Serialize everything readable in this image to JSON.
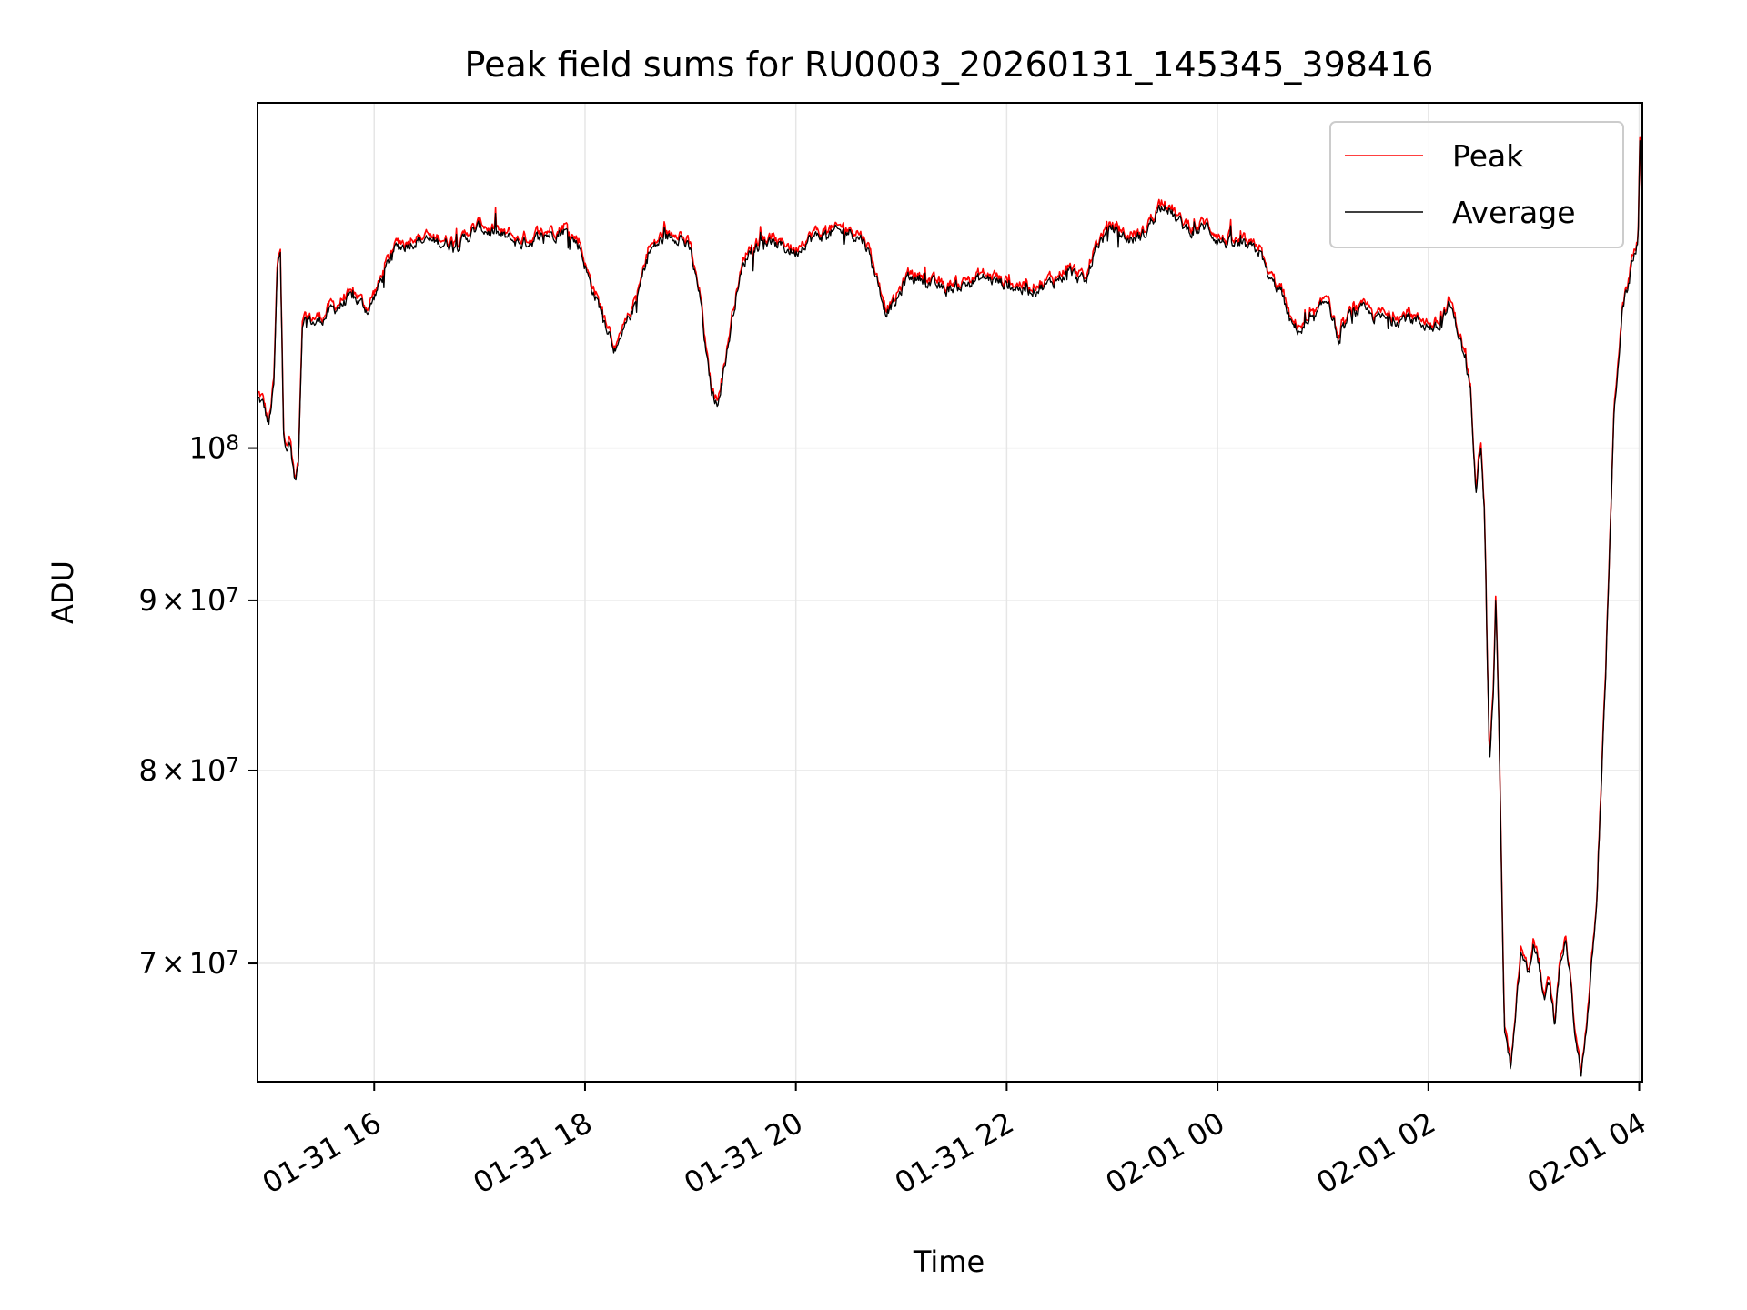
{
  "chart_data": {
    "type": "line",
    "title": "Peak field sums for RU0003_20260131_145345_398416",
    "xlabel": "Time",
    "ylabel": "ADU",
    "yscale": "log",
    "ylim": [
      64500000,
      127000000
    ],
    "xlim_hours": [
      14.893,
      28.03
    ],
    "grid": true,
    "legend_location": "top-right",
    "x_ticks": [
      {
        "hours": 16,
        "label": "01-31 16"
      },
      {
        "hours": 18,
        "label": "01-31 18"
      },
      {
        "hours": 20,
        "label": "01-31 20"
      },
      {
        "hours": 22,
        "label": "01-31 22"
      },
      {
        "hours": 24,
        "label": "02-01 00"
      },
      {
        "hours": 26,
        "label": "02-01 02"
      },
      {
        "hours": 28,
        "label": "02-01 04"
      }
    ],
    "y_ticks": [
      {
        "value": 70000000,
        "mant": "7",
        "times": "×",
        "base": "10",
        "exp": "7"
      },
      {
        "value": 80000000,
        "mant": "8",
        "times": "×",
        "base": "10",
        "exp": "7"
      },
      {
        "value": 90000000,
        "mant": "9",
        "times": "×",
        "base": "10",
        "exp": "7"
      },
      {
        "value": 100000000,
        "mant": "",
        "times": "",
        "base": "10",
        "exp": "8"
      }
    ],
    "series": [
      {
        "name": "Peak",
        "color": "#ff0000",
        "offset_fraction": 0.003,
        "anchors": [
          [
            14.893,
            103500000
          ],
          [
            14.95,
            103000000
          ],
          [
            15.0,
            101500000
          ],
          [
            15.05,
            104500000
          ],
          [
            15.08,
            113000000
          ],
          [
            15.11,
            114500000
          ],
          [
            15.14,
            101500000
          ],
          [
            15.17,
            99500000
          ],
          [
            15.2,
            100500000
          ],
          [
            15.25,
            97500000
          ],
          [
            15.28,
            99000000
          ],
          [
            15.32,
            109500000
          ],
          [
            15.45,
            109000000
          ],
          [
            15.6,
            110000000
          ],
          [
            15.8,
            111000000
          ],
          [
            15.95,
            110000000
          ],
          [
            16.05,
            112000000
          ],
          [
            16.2,
            114800000
          ],
          [
            16.4,
            115500000
          ],
          [
            16.6,
            115300000
          ],
          [
            16.8,
            115200000
          ],
          [
            17.0,
            116500000
          ],
          [
            17.2,
            115800000
          ],
          [
            17.4,
            115200000
          ],
          [
            17.6,
            115800000
          ],
          [
            17.8,
            116300000
          ],
          [
            17.95,
            115000000
          ],
          [
            18.05,
            112000000
          ],
          [
            18.15,
            110000000
          ],
          [
            18.25,
            108000000
          ],
          [
            18.3,
            106800000
          ],
          [
            18.4,
            109000000
          ],
          [
            18.5,
            111000000
          ],
          [
            18.6,
            114500000
          ],
          [
            18.75,
            115600000
          ],
          [
            18.9,
            115900000
          ],
          [
            19.0,
            114500000
          ],
          [
            19.1,
            110500000
          ],
          [
            19.15,
            106500000
          ],
          [
            19.2,
            104000000
          ],
          [
            19.25,
            103000000
          ],
          [
            19.35,
            107000000
          ],
          [
            19.45,
            112000000
          ],
          [
            19.55,
            114500000
          ],
          [
            19.7,
            115500000
          ],
          [
            19.85,
            115000000
          ],
          [
            20.0,
            114500000
          ],
          [
            20.1,
            115500000
          ],
          [
            20.3,
            116000000
          ],
          [
            20.5,
            116200000
          ],
          [
            20.65,
            115500000
          ],
          [
            20.75,
            113000000
          ],
          [
            20.85,
            110000000
          ],
          [
            20.95,
            110500000
          ],
          [
            21.05,
            112500000
          ],
          [
            21.2,
            112500000
          ],
          [
            21.4,
            111500000
          ],
          [
            21.6,
            112000000
          ],
          [
            21.8,
            112500000
          ],
          [
            22.0,
            112000000
          ],
          [
            22.2,
            111500000
          ],
          [
            22.4,
            112000000
          ],
          [
            22.6,
            113000000
          ],
          [
            22.75,
            112000000
          ],
          [
            22.85,
            115000000
          ],
          [
            23.0,
            116500000
          ],
          [
            23.15,
            115500000
          ],
          [
            23.3,
            115800000
          ],
          [
            23.42,
            117800000
          ],
          [
            23.5,
            118600000
          ],
          [
            23.6,
            117200000
          ],
          [
            23.7,
            116400000
          ],
          [
            23.8,
            116200000
          ],
          [
            23.9,
            116600000
          ],
          [
            24.0,
            115500000
          ],
          [
            24.2,
            115000000
          ],
          [
            24.4,
            114600000
          ],
          [
            24.5,
            112200000
          ],
          [
            24.6,
            111500000
          ],
          [
            24.7,
            108800000
          ],
          [
            24.8,
            108500000
          ],
          [
            24.9,
            109000000
          ],
          [
            25.05,
            111000000
          ],
          [
            25.15,
            107500000
          ],
          [
            25.25,
            109500000
          ],
          [
            25.35,
            110000000
          ],
          [
            25.5,
            109500000
          ],
          [
            25.65,
            109200000
          ],
          [
            25.8,
            109500000
          ],
          [
            25.95,
            109000000
          ],
          [
            26.1,
            108500000
          ],
          [
            26.2,
            110500000
          ],
          [
            26.3,
            108000000
          ],
          [
            26.4,
            104000000
          ],
          [
            26.45,
            97500000
          ],
          [
            26.5,
            100500000
          ],
          [
            26.53,
            96000000
          ],
          [
            26.56,
            86500000
          ],
          [
            26.58,
            80500000
          ],
          [
            26.62,
            85000000
          ],
          [
            26.64,
            90500000
          ],
          [
            26.67,
            82000000
          ],
          [
            26.72,
            67000000
          ],
          [
            26.78,
            65000000
          ],
          [
            26.83,
            67500000
          ],
          [
            26.88,
            70500000
          ],
          [
            26.95,
            69500000
          ],
          [
            27.0,
            71000000
          ],
          [
            27.05,
            70000000
          ],
          [
            27.1,
            68000000
          ],
          [
            27.15,
            69000000
          ],
          [
            27.2,
            67000000
          ],
          [
            27.25,
            70000000
          ],
          [
            27.3,
            71000000
          ],
          [
            27.35,
            69000000
          ],
          [
            27.4,
            66000000
          ],
          [
            27.45,
            64800000
          ],
          [
            27.52,
            68000000
          ],
          [
            27.6,
            73000000
          ],
          [
            27.68,
            85000000
          ],
          [
            27.76,
            102000000
          ],
          [
            27.84,
            110000000
          ],
          [
            27.9,
            112000000
          ],
          [
            27.95,
            114500000
          ],
          [
            27.99,
            115500000
          ],
          [
            28.01,
            124500000
          ],
          [
            28.03,
            112000000
          ]
        ]
      },
      {
        "name": "Average",
        "color": "#000000",
        "offset_fraction": 0.0,
        "anchors": "same_as_peak"
      }
    ]
  }
}
